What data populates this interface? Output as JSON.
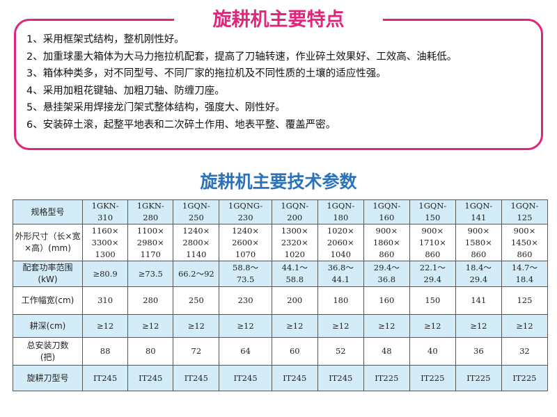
{
  "features": {
    "title": "旋耕机主要特点",
    "items": [
      "1、采用框架式结构，整机刚性好。",
      "2、加重球墨大箱体为大马力拖拉机配套，提高了刀轴转速，作业碎土效果好、工效高、油耗低。",
      "3、箱体种类多，对不同型号、不同厂家的拖拉机及不同性质的土壤的适应性强。",
      "4、采用加粗花键轴、加粗刀轴、防缠刀座。",
      "5、悬挂架采用焊接龙门架式整体结构，强度大、刚性好。",
      "6、安装碎土滚，起整平地表和二次碎土作用、地表平整、覆盖严密。"
    ]
  },
  "specs": {
    "title": "旋耕机主要技术参数",
    "rows": [
      {
        "label": "规格型号",
        "cells": [
          "1GKN-310",
          "1GKN-280",
          "1GQN-250",
          "1GQNG-230",
          "1GQN-200",
          "1GQN-180",
          "1GQN-160",
          "1GQN-150",
          "1GQN-141",
          "1GQN-125"
        ]
      },
      {
        "label": "外形尺寸（长×宽×高）(mm)",
        "cells": [
          "1160×\n3300×\n1300",
          "1100×\n2980×\n1170",
          "1240×\n2800×\n1140",
          "1240×\n2600×\n1070",
          "1300×\n2320×\n1020",
          "1020×\n2060×\n1040",
          "900×\n1860×\n860",
          "900×\n1710×\n860",
          "900×\n1580×\n860",
          "900×\n1450×\n860"
        ]
      },
      {
        "label": "配套功率范围\n(kW)",
        "cells": [
          "≥80.9",
          "≥73.5",
          "66.2～92",
          "58.8～\n73.5",
          "44.1～\n58.8",
          "36.8～\n44.1",
          "29.4～\n36.8",
          "22.1～\n29.4",
          "18.4～\n29.4",
          "14.7～\n18.4"
        ]
      },
      {
        "label": "工作幅宽(cm)",
        "cells": [
          "310",
          "280",
          "250",
          "230",
          "200",
          "180",
          "160",
          "150",
          "141",
          "125"
        ]
      },
      {
        "label": "耕深(cm)",
        "cells": [
          "≥12",
          "≥12",
          "≥12",
          "≥12",
          "≥12",
          "≥12",
          "≥12",
          "≥12",
          "≥12",
          "≥12"
        ]
      },
      {
        "label": "总安装刀数\n(把)",
        "cells": [
          "88",
          "80",
          "72",
          "64",
          "60",
          "52",
          "48",
          "40",
          "36",
          "32"
        ]
      },
      {
        "label": "旋耕刀型号",
        "cells": [
          "IT245",
          "IT245",
          "IT245",
          "IT245",
          "IT245",
          "IT245",
          "IT225",
          "IT225",
          "IT225",
          "IT225"
        ]
      }
    ]
  },
  "colors": {
    "pink": "#e0257a",
    "blue_title": "#2a73b9",
    "row_fill": "#d3ecf8"
  }
}
